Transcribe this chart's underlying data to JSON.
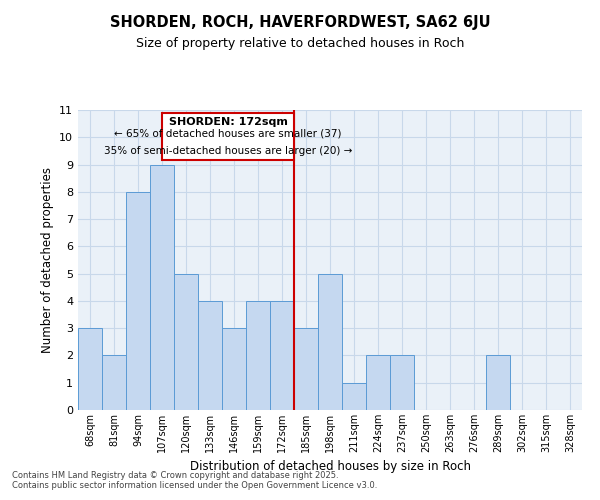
{
  "title": "SHORDEN, ROCH, HAVERFORDWEST, SA62 6JU",
  "subtitle": "Size of property relative to detached houses in Roch",
  "xlabel": "Distribution of detached houses by size in Roch",
  "ylabel": "Number of detached properties",
  "bin_labels": [
    "68sqm",
    "81sqm",
    "94sqm",
    "107sqm",
    "120sqm",
    "133sqm",
    "146sqm",
    "159sqm",
    "172sqm",
    "185sqm",
    "198sqm",
    "211sqm",
    "224sqm",
    "237sqm",
    "250sqm",
    "263sqm",
    "276sqm",
    "289sqm",
    "302sqm",
    "315sqm",
    "328sqm"
  ],
  "bar_values": [
    3,
    2,
    8,
    9,
    5,
    4,
    3,
    4,
    4,
    3,
    5,
    1,
    2,
    2,
    0,
    0,
    0,
    2,
    0,
    0,
    0
  ],
  "bar_color": "#c5d8f0",
  "bar_edge_color": "#5b9bd5",
  "vline_color": "#cc0000",
  "annotation_box_title": "SHORDEN: 172sqm",
  "annotation_line1": "← 65% of detached houses are smaller (37)",
  "annotation_line2": "35% of semi-detached houses are larger (20) →",
  "annotation_box_color": "#cc0000",
  "annotation_box_fill": "#ffffff",
  "ylim": [
    0,
    11
  ],
  "yticks": [
    0,
    1,
    2,
    3,
    4,
    5,
    6,
    7,
    8,
    9,
    10,
    11
  ],
  "grid_color": "#c8d8ea",
  "background_color": "#eaf1f8",
  "footer_line1": "Contains HM Land Registry data © Crown copyright and database right 2025.",
  "footer_line2": "Contains public sector information licensed under the Open Government Licence v3.0."
}
